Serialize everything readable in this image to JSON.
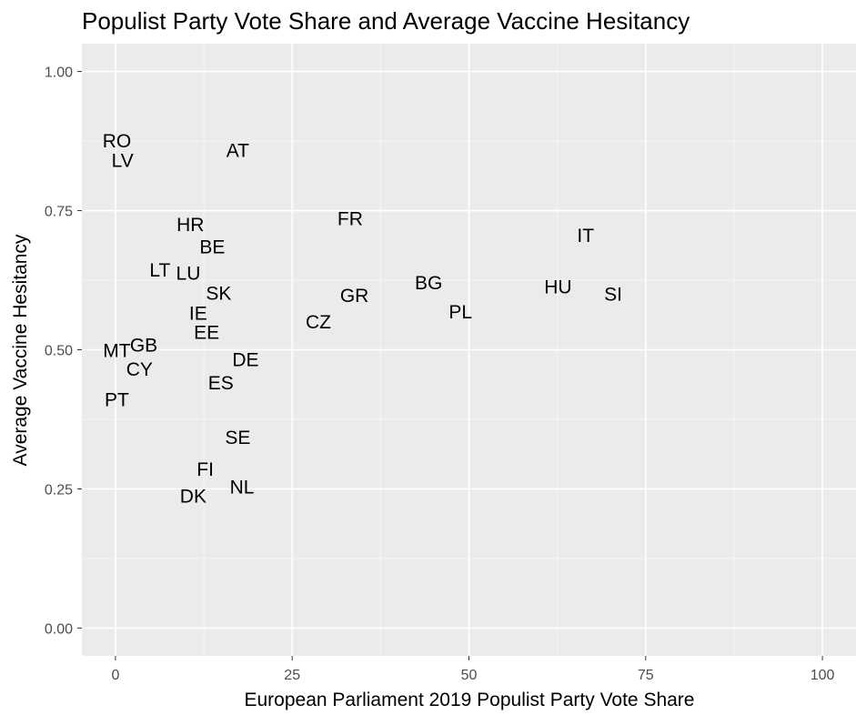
{
  "chart_data": {
    "type": "scatter",
    "title": "Populist Party Vote Share and Average Vaccine Hesitancy",
    "xlabel": "European Parliament 2019 Populist Party Vote Share",
    "ylabel": "Average Vaccine Hesitancy",
    "xlim": [
      -4.75,
      104.75
    ],
    "ylim": [
      -0.05,
      1.05
    ],
    "x_ticks": [
      {
        "value": 0,
        "label": "0"
      },
      {
        "value": 25,
        "label": "25"
      },
      {
        "value": 50,
        "label": "50"
      },
      {
        "value": 75,
        "label": "75"
      },
      {
        "value": 100,
        "label": "100"
      }
    ],
    "y_ticks": [
      {
        "value": 0,
        "label": "0.00"
      },
      {
        "value": 0.25,
        "label": "0.25"
      },
      {
        "value": 0.5,
        "label": "0.50"
      },
      {
        "value": 0.75,
        "label": "0.75"
      },
      {
        "value": 1.0,
        "label": "1.00"
      }
    ],
    "grid": true,
    "background": "#ebebeb",
    "grid_major_color": "#ffffff",
    "points": [
      {
        "label": "RO",
        "x": 0.2,
        "y": 0.875
      },
      {
        "label": "LV",
        "x": 1.0,
        "y": 0.84
      },
      {
        "label": "AT",
        "x": 17.3,
        "y": 0.858
      },
      {
        "label": "FR",
        "x": 33.2,
        "y": 0.735
      },
      {
        "label": "HR",
        "x": 10.6,
        "y": 0.725
      },
      {
        "label": "BE",
        "x": 13.7,
        "y": 0.685
      },
      {
        "label": "IT",
        "x": 66.5,
        "y": 0.705
      },
      {
        "label": "LT",
        "x": 6.3,
        "y": 0.643
      },
      {
        "label": "LU",
        "x": 10.3,
        "y": 0.637
      },
      {
        "label": "BG",
        "x": 44.3,
        "y": 0.62
      },
      {
        "label": "HU",
        "x": 62.6,
        "y": 0.613
      },
      {
        "label": "SI",
        "x": 70.4,
        "y": 0.6
      },
      {
        "label": "SK",
        "x": 14.6,
        "y": 0.601
      },
      {
        "label": "GR",
        "x": 33.8,
        "y": 0.597
      },
      {
        "label": "PL",
        "x": 48.8,
        "y": 0.568
      },
      {
        "label": "IE",
        "x": 11.7,
        "y": 0.565
      },
      {
        "label": "CZ",
        "x": 28.7,
        "y": 0.55
      },
      {
        "label": "EE",
        "x": 12.9,
        "y": 0.531
      },
      {
        "label": "GB",
        "x": 4.0,
        "y": 0.508
      },
      {
        "label": "MT",
        "x": 0.2,
        "y": 0.498
      },
      {
        "label": "DE",
        "x": 18.4,
        "y": 0.482
      },
      {
        "label": "CY",
        "x": 3.4,
        "y": 0.465
      },
      {
        "label": "ES",
        "x": 14.9,
        "y": 0.44
      },
      {
        "label": "PT",
        "x": 0.2,
        "y": 0.41
      },
      {
        "label": "SE",
        "x": 17.3,
        "y": 0.342
      },
      {
        "label": "FI",
        "x": 12.7,
        "y": 0.285
      },
      {
        "label": "NL",
        "x": 17.9,
        "y": 0.253
      },
      {
        "label": "DK",
        "x": 11.0,
        "y": 0.237
      }
    ]
  }
}
